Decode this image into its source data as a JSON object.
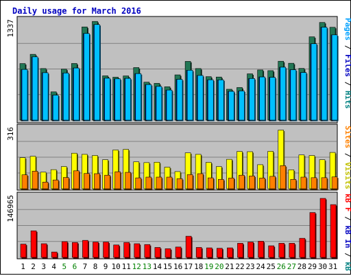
{
  "chart_data": {
    "type": "bar",
    "title": "Daily usage for March 2016",
    "days": [
      "1",
      "2",
      "3",
      "4",
      "5",
      "6",
      "7",
      "8",
      "9",
      "10",
      "11",
      "12",
      "13",
      "14",
      "15",
      "16",
      "17",
      "18",
      "19",
      "20",
      "21",
      "22",
      "23",
      "24",
      "25",
      "26",
      "27",
      "28",
      "29",
      "30",
      "31"
    ],
    "weekend_days": [
      "5",
      "6",
      "12",
      "13",
      "19",
      "20",
      "26",
      "27"
    ],
    "panels": [
      {
        "max_label": "1337",
        "ylim": [
          0,
          1337
        ],
        "right_labels": [
          {
            "text": "Pages",
            "color": "#00a0ff"
          },
          {
            "text": " / ",
            "color": "#000000"
          },
          {
            "text": "Files",
            "color": "#0000c0"
          },
          {
            "text": " / ",
            "color": "#000000"
          },
          {
            "text": "Hits",
            "color": "#008080"
          }
        ],
        "series": [
          {
            "name": "Hits",
            "color": "#227755",
            "values": [
              760,
              884,
              693,
              380,
              685,
              761,
              1252,
              1326,
              595,
              577,
              594,
              706,
              510,
              494,
              448,
              608,
              789,
              693,
              584,
              579,
              415,
              438,
              622,
              674,
              665,
              791,
              764,
              695,
              1119,
              1312,
              1247
            ]
          },
          {
            "name": "Files",
            "color": "#0000c0",
            "values": [
              681,
              850,
              637,
              336,
              633,
              700,
              1164,
              1284,
              563,
              555,
              561,
              625,
              478,
              453,
              404,
              548,
              670,
              600,
              542,
              541,
              387,
              392,
              559,
              580,
              575,
              711,
              677,
              640,
              1026,
              1248,
              1145
            ]
          },
          {
            "name": "Pages",
            "color": "#00c0ff",
            "values": [
              681,
              850,
              637,
              336,
              633,
              700,
              1164,
              1284,
              563,
              555,
              561,
              625,
              478,
              453,
              404,
              548,
              670,
              600,
              542,
              541,
              387,
              392,
              559,
              580,
              575,
              711,
              677,
              640,
              1026,
              1248,
              1145
            ]
          }
        ]
      },
      {
        "max_label": "316",
        "ylim": [
          0,
          316
        ],
        "right_labels": [
          {
            "text": "Sites",
            "color": "#ff8000"
          },
          {
            "text": " / ",
            "color": "#000000"
          },
          {
            "text": "Visits",
            "color": "#c0c000"
          }
        ],
        "series": [
          {
            "name": "Visits",
            "color": "#ffff00",
            "values": [
              163,
              170,
              87,
              100,
              116,
              186,
              180,
              174,
              152,
              203,
              206,
              141,
              137,
              139,
              113,
              90,
              188,
              180,
              138,
              116,
              154,
              195,
              194,
              126,
              196,
              307,
              99,
              177,
              174,
              152,
              190
            ]
          },
          {
            "name": "Sites",
            "color": "#ff8000",
            "values": [
              73,
              92,
              35,
              46,
              59,
              94,
              80,
              79,
              71,
              89,
              86,
              57,
              61,
              61,
              61,
              53,
              74,
              79,
              57,
              49,
              56,
              71,
              67,
              56,
              65,
              121,
              49,
              61,
              58,
              58,
              62
            ]
          }
        ]
      },
      {
        "max_label": "146965",
        "ylim": [
          0,
          146965
        ],
        "right_labels": [
          {
            "text": "kB F",
            "color": "#ff0000"
          },
          {
            "text": " / ",
            "color": "#000000"
          },
          {
            "text": "kB In",
            "color": "#0000c0"
          },
          {
            "text": " / ",
            "color": "#000000"
          },
          {
            "text": "kB Out",
            "color": "#008080"
          }
        ],
        "series": [
          {
            "name": "kB F",
            "color": "#ff0000",
            "values": [
              32000,
              64000,
              33000,
              13000,
              38000,
              36000,
              41000,
              37000,
              37000,
              30000,
              36000,
              33000,
              31000,
              24000,
              21000,
              25000,
              51000,
              24000,
              23000,
              22000,
              23000,
              34000,
              37000,
              39000,
              28000,
              34000,
              34000,
              46000,
              108000,
              142000,
              127000
            ]
          }
        ]
      }
    ]
  }
}
